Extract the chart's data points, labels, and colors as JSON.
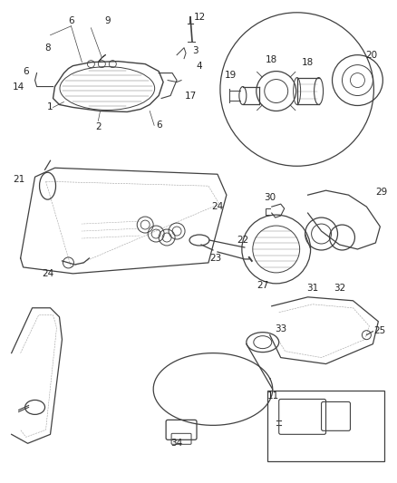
{
  "bg_color": "#ffffff",
  "line_color": "#404040",
  "label_color": "#222222",
  "lw": 0.9,
  "fig_width": 4.38,
  "fig_height": 5.33,
  "dpi": 100
}
